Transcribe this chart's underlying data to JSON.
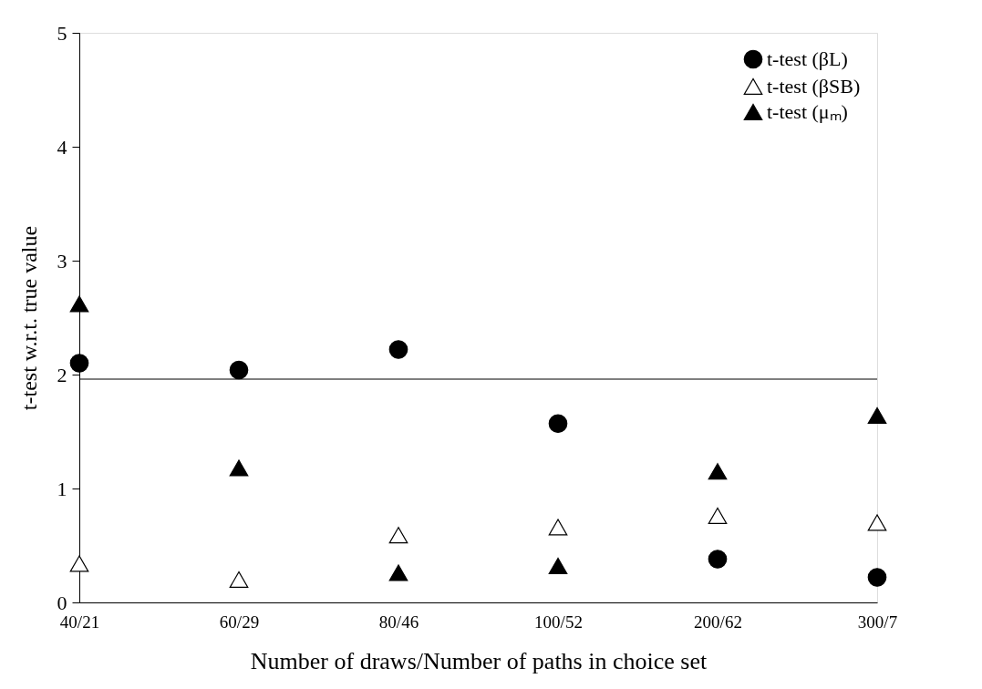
{
  "chart_data": {
    "type": "scatter",
    "xlabel": "Number of draws/Number of paths in choice set",
    "ylabel": "t-test w.r.t. true value",
    "categories": [
      "40/21",
      "60/29",
      "80/46",
      "100/52",
      "200/62",
      "300/7"
    ],
    "series": [
      {
        "name": "t-test (βL)",
        "color": "#000000",
        "marker": "circle",
        "values": [
          2.1,
          2.04,
          2.22,
          1.57,
          0.38,
          0.22
        ]
      },
      {
        "name": "t-test (βSB)",
        "color": "#ffffff",
        "marker": "triangle",
        "values": [
          0.34,
          0.2,
          0.59,
          0.66,
          0.76,
          0.7
        ]
      },
      {
        "name": "t-test (μₘ)",
        "color": "#000000",
        "marker": "triangle",
        "values": [
          2.62,
          1.18,
          0.26,
          0.32,
          1.15,
          1.64
        ]
      }
    ],
    "ylim": [
      0,
      5
    ],
    "yticks": [
      0,
      1,
      2,
      3,
      4,
      5
    ],
    "grid": false,
    "legend": "top right",
    "ref_lines": [
      {
        "axis": "y",
        "value": 1.96,
        "label": null,
        "color": "#000000"
      }
    ]
  }
}
